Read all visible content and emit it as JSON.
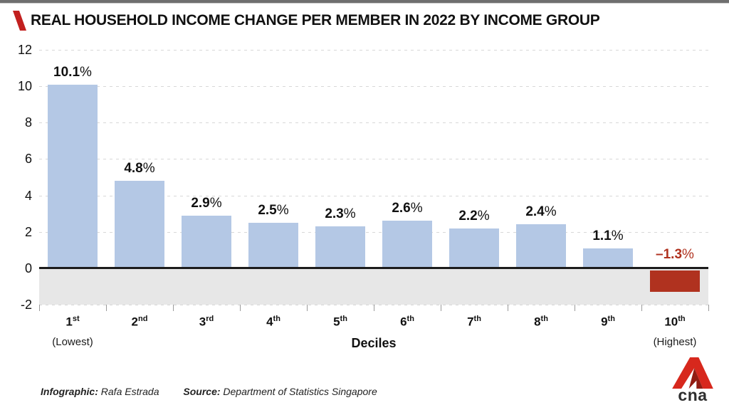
{
  "header": {
    "title": "REAL HOUSEHOLD INCOME CHANGE PER MEMBER IN 2022 BY INCOME GROUP"
  },
  "chart_data": {
    "type": "bar",
    "title": "Real household income change per member in 2022 by income group",
    "categories": [
      "1st",
      "2nd",
      "3rd",
      "4th",
      "5th",
      "6th",
      "7th",
      "8th",
      "9th",
      "10th"
    ],
    "category_notes": [
      "(Lowest)",
      "",
      "",
      "",
      "",
      "",
      "",
      "",
      "",
      "(Highest)"
    ],
    "values": [
      10.1,
      4.8,
      2.9,
      2.5,
      2.3,
      2.6,
      2.2,
      2.4,
      1.1,
      -1.3
    ],
    "value_labels": [
      "10.1%",
      "4.8%",
      "2.9%",
      "2.5%",
      "2.3%",
      "2.6%",
      "2.2%",
      "2.4%",
      "1.1%",
      "–1.3%"
    ],
    "xlabel": "Deciles",
    "ylabel": "",
    "ylim": [
      -2,
      12
    ],
    "yticks": [
      -2,
      0,
      2,
      4,
      6,
      8,
      10,
      12
    ],
    "grid": true,
    "legend": "none",
    "positive_color": "#b4c8e5",
    "negative_color": "#b0321f",
    "negative_label_color": "#b0321f",
    "below_zero_band_color": "#e7e7e7",
    "axis_line_color": "#1c1c1c"
  },
  "footer": {
    "infographic_label": "Infographic:",
    "infographic_value": "Rafa Estrada",
    "source_label": "Source:",
    "source_value": "Department of Statistics Singapore",
    "logo_text": "cna"
  },
  "colors": {
    "accent_red": "#c2201f"
  }
}
